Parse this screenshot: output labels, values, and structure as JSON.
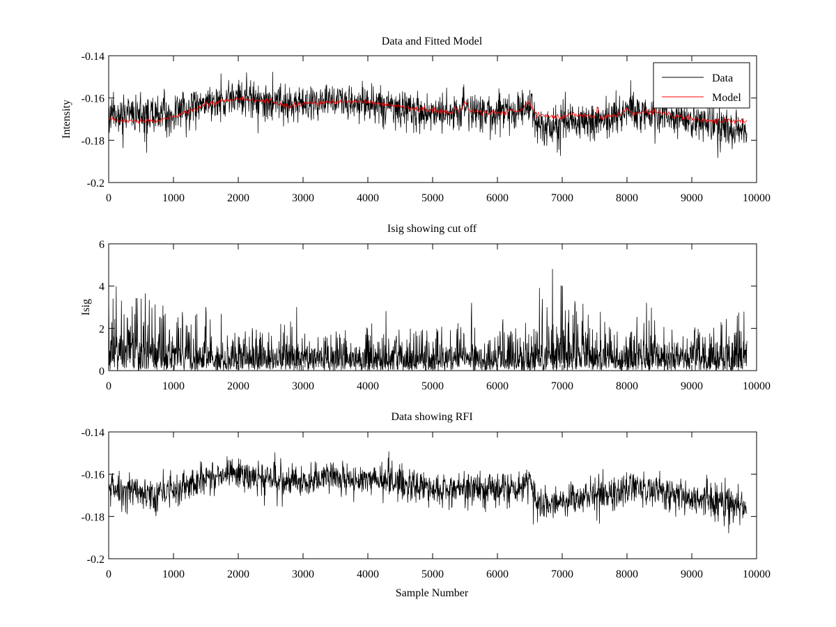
{
  "figure": {
    "background": "#ffffff",
    "line_colors": {
      "data": "#000000",
      "model": "#ff0000"
    }
  },
  "chart_data": [
    {
      "type": "line",
      "title": "Data and Fitted Model",
      "xlabel": "",
      "ylabel": "Intensity",
      "xlim": [
        0,
        10000
      ],
      "ylim": [
        -0.2,
        -0.14
      ],
      "xticks": [
        0,
        1000,
        2000,
        3000,
        4000,
        5000,
        6000,
        7000,
        8000,
        9000,
        10000
      ],
      "xtick_labels": [
        "0",
        "1000",
        "2000",
        "3000",
        "4000",
        "5000",
        "6000",
        "7000",
        "8000",
        "9000",
        "10000"
      ],
      "yticks": [
        -0.14,
        -0.16,
        -0.18,
        -0.2
      ],
      "ytick_labels": [
        "-0.14",
        "-0.16",
        "-0.18",
        "-0.2"
      ],
      "legend": {
        "position": "top-right",
        "entries": [
          "Data",
          "Model"
        ]
      },
      "series": [
        {
          "name": "Data",
          "color": "#000000",
          "kind": "noisy",
          "x_end": 9850,
          "noise": 0.0042,
          "spike_rate": 0.04,
          "spike_size": 0.007,
          "seed": 11,
          "baseline": [
            [
              0,
              -0.167
            ],
            [
              300,
              -0.168
            ],
            [
              700,
              -0.169
            ],
            [
              1000,
              -0.167
            ],
            [
              1500,
              -0.163
            ],
            [
              2000,
              -0.16
            ],
            [
              2500,
              -0.162
            ],
            [
              3000,
              -0.163
            ],
            [
              3400,
              -0.161
            ],
            [
              4000,
              -0.163
            ],
            [
              4500,
              -0.165
            ],
            [
              5000,
              -0.167
            ],
            [
              5400,
              -0.167
            ],
            [
              5500,
              -0.164
            ],
            [
              5600,
              -0.167
            ],
            [
              6000,
              -0.167
            ],
            [
              6400,
              -0.166
            ],
            [
              6500,
              -0.163
            ],
            [
              6560,
              -0.167
            ],
            [
              6600,
              -0.173
            ],
            [
              6800,
              -0.174
            ],
            [
              7200,
              -0.171
            ],
            [
              7600,
              -0.171
            ],
            [
              8000,
              -0.166
            ],
            [
              8500,
              -0.168
            ],
            [
              9000,
              -0.171
            ],
            [
              9500,
              -0.174
            ],
            [
              9850,
              -0.175
            ]
          ]
        },
        {
          "name": "Model",
          "color": "#ff0000",
          "kind": "smooth",
          "wiggle": 0.0006,
          "seed": 23,
          "points": [
            [
              0,
              -0.17
            ],
            [
              300,
              -0.171
            ],
            [
              700,
              -0.171
            ],
            [
              1000,
              -0.169
            ],
            [
              1500,
              -0.163
            ],
            [
              2000,
              -0.16
            ],
            [
              2500,
              -0.162
            ],
            [
              2800,
              -0.164
            ],
            [
              3000,
              -0.163
            ],
            [
              3300,
              -0.162
            ],
            [
              4000,
              -0.162
            ],
            [
              4500,
              -0.164
            ],
            [
              5000,
              -0.166
            ],
            [
              5300,
              -0.167
            ],
            [
              5350,
              -0.165
            ],
            [
              5400,
              -0.167
            ],
            [
              5500,
              -0.162
            ],
            [
              5560,
              -0.166
            ],
            [
              5800,
              -0.167
            ],
            [
              6100,
              -0.167
            ],
            [
              6200,
              -0.165
            ],
            [
              6300,
              -0.167
            ],
            [
              6400,
              -0.165
            ],
            [
              6480,
              -0.162
            ],
            [
              6560,
              -0.166
            ],
            [
              6600,
              -0.168
            ],
            [
              7000,
              -0.169
            ],
            [
              7200,
              -0.168
            ],
            [
              7500,
              -0.169
            ],
            [
              7540,
              -0.164
            ],
            [
              7580,
              -0.169
            ],
            [
              7900,
              -0.168
            ],
            [
              8000,
              -0.165
            ],
            [
              8100,
              -0.168
            ],
            [
              8300,
              -0.166
            ],
            [
              8500,
              -0.167
            ],
            [
              9000,
              -0.17
            ],
            [
              9500,
              -0.171
            ],
            [
              9850,
              -0.171
            ]
          ]
        }
      ]
    },
    {
      "type": "line",
      "title": "Isig showing cut off",
      "xlabel": "",
      "ylabel": "Isig",
      "xlim": [
        0,
        10000
      ],
      "ylim": [
        0,
        6
      ],
      "xticks": [
        0,
        1000,
        2000,
        3000,
        4000,
        5000,
        6000,
        7000,
        8000,
        9000,
        10000
      ],
      "xtick_labels": [
        "0",
        "1000",
        "2000",
        "3000",
        "4000",
        "5000",
        "6000",
        "7000",
        "8000",
        "9000",
        "10000"
      ],
      "yticks": [
        0,
        2,
        4,
        6
      ],
      "ytick_labels": [
        "0",
        "2",
        "4",
        "6"
      ],
      "series": [
        {
          "name": "Isig",
          "color": "#000000",
          "kind": "abs-noise",
          "x_end": 9850,
          "seed": 37,
          "envelope": [
            [
              0,
              1.6
            ],
            [
              500,
              1.5
            ],
            [
              1000,
              1.1
            ],
            [
              1500,
              1.0
            ],
            [
              2000,
              0.9
            ],
            [
              3000,
              0.9
            ],
            [
              4000,
              0.9
            ],
            [
              5000,
              0.85
            ],
            [
              6000,
              0.9
            ],
            [
              6500,
              1.0
            ],
            [
              6600,
              1.5
            ],
            [
              7000,
              1.6
            ],
            [
              7300,
              1.3
            ],
            [
              7600,
              1.0
            ],
            [
              8000,
              1.0
            ],
            [
              9000,
              1.1
            ],
            [
              9850,
              1.1
            ]
          ],
          "peaks": [
            [
              500,
              3.4
            ],
            [
              1500,
              3.0
            ],
            [
              2900,
              3.0
            ],
            [
              5600,
              3.2
            ],
            [
              6650,
              3.9
            ],
            [
              6850,
              4.8
            ],
            [
              7000,
              4.0
            ],
            [
              7200,
              3.1
            ],
            [
              8300,
              3.2
            ]
          ]
        }
      ]
    },
    {
      "type": "line",
      "title": "Data showing RFI",
      "xlabel": "Sample Number",
      "ylabel": "",
      "xlim": [
        0,
        10000
      ],
      "ylim": [
        -0.2,
        -0.14
      ],
      "xticks": [
        0,
        1000,
        2000,
        3000,
        4000,
        5000,
        6000,
        7000,
        8000,
        9000,
        10000
      ],
      "xtick_labels": [
        "0",
        "1000",
        "2000",
        "3000",
        "4000",
        "5000",
        "6000",
        "7000",
        "8000",
        "9000",
        "10000"
      ],
      "yticks": [
        -0.14,
        -0.16,
        -0.18,
        -0.2
      ],
      "ytick_labels": [
        "-0.14",
        "-0.16",
        "-0.18",
        "-0.2"
      ],
      "series": [
        {
          "name": "Data",
          "color": "#000000",
          "kind": "noisy",
          "x_end": 9850,
          "noise": 0.0038,
          "spike_rate": 0.035,
          "spike_size": 0.006,
          "seed": 53,
          "baseline": [
            [
              0,
              -0.167
            ],
            [
              300,
              -0.168
            ],
            [
              700,
              -0.169
            ],
            [
              1000,
              -0.167
            ],
            [
              1500,
              -0.163
            ],
            [
              2000,
              -0.16
            ],
            [
              2500,
              -0.162
            ],
            [
              3000,
              -0.163
            ],
            [
              3400,
              -0.161
            ],
            [
              4000,
              -0.163
            ],
            [
              4500,
              -0.165
            ],
            [
              5000,
              -0.167
            ],
            [
              5400,
              -0.167
            ],
            [
              5500,
              -0.164
            ],
            [
              5600,
              -0.167
            ],
            [
              6000,
              -0.167
            ],
            [
              6400,
              -0.166
            ],
            [
              6500,
              -0.163
            ],
            [
              6560,
              -0.167
            ],
            [
              6600,
              -0.173
            ],
            [
              6800,
              -0.174
            ],
            [
              7200,
              -0.171
            ],
            [
              7600,
              -0.171
            ],
            [
              8000,
              -0.166
            ],
            [
              8500,
              -0.168
            ],
            [
              9000,
              -0.171
            ],
            [
              9500,
              -0.174
            ],
            [
              9850,
              -0.175
            ]
          ]
        }
      ]
    }
  ]
}
